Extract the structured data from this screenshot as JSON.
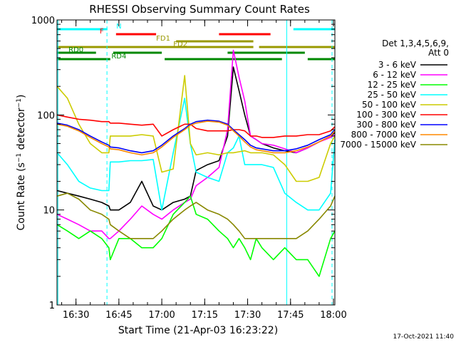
{
  "chart_data": {
    "type": "line",
    "title": "RHESSI Observing Summary Count Rates",
    "xlabel": "Start Time (21-Apr-03 16:23:22)",
    "ylabel": "Count Rate (s⁻¹ detector⁻¹)",
    "ylabel_parts": {
      "base": "Count Rate (s",
      "sup1": "−1",
      "mid": " detector",
      "sup2": "−1",
      "end": ")"
    },
    "y_scale": "log",
    "ylim": [
      1,
      1000
    ],
    "xlim": [
      "16:23:22",
      "18:00:30"
    ],
    "x_ticks": [
      "16:30",
      "16:45",
      "17:00",
      "17:15",
      "17:30",
      "17:45",
      "18:00"
    ],
    "y_ticks": [
      "1",
      "10",
      "100",
      "1000"
    ],
    "legend_position": "right",
    "legend_header": [
      "Det 1,3,4,5,6,9,",
      "Att 0"
    ],
    "timestamp": "17-Oct-2021 11:40",
    "flag_labels": [
      "N",
      "F",
      "FD1",
      "FD2",
      "RD0",
      "RD4"
    ],
    "flags": [
      {
        "label": "N",
        "color": "#00ffff",
        "segments": [
          [
            "16:23:22",
            "16:41:00"
          ],
          [
            "17:46:00",
            "18:00:30"
          ]
        ]
      },
      {
        "label": "F",
        "color": "#ff0000",
        "segments": [
          [
            "16:44:00",
            "16:58:00"
          ],
          [
            "17:20:00",
            "17:38:00"
          ]
        ]
      },
      {
        "label": "FD1",
        "color": "#999900",
        "segments": [
          [
            "17:05:00",
            "17:32:00"
          ]
        ]
      },
      {
        "label": "FD2",
        "color": "#999900",
        "segments": [
          [
            "16:23:22",
            "17:32:00"
          ],
          [
            "17:34:00",
            "18:00:30"
          ]
        ]
      },
      {
        "label": "RD0",
        "color": "#008800",
        "segments": [
          [
            "16:23:22",
            "16:37:00"
          ],
          [
            "16:43:00",
            "17:00:00"
          ],
          [
            "17:23:00",
            "17:50:00"
          ]
        ]
      },
      {
        "label": "RD4",
        "color": "#008800",
        "segments": [
          [
            "16:23:22",
            "16:42:00"
          ],
          [
            "17:01:00",
            "17:42:00"
          ],
          [
            "17:51:00",
            "18:00:30"
          ]
        ]
      }
    ],
    "x_minutes": [
      23.4,
      27,
      31,
      35,
      39,
      41.5,
      42,
      45,
      49,
      53,
      57,
      60,
      64,
      68,
      70,
      72,
      76,
      80,
      83,
      85,
      87,
      89,
      91,
      93,
      95,
      99,
      103,
      107,
      111,
      115,
      119,
      120.5
    ],
    "series": [
      {
        "name": "3 - 6 keV",
        "color": "#000000",
        "values": [
          16,
          15,
          14,
          13,
          12,
          11,
          10,
          10,
          12,
          20,
          11,
          10,
          12,
          13,
          14,
          26,
          30,
          33,
          60,
          320,
          180,
          100,
          60,
          55,
          50,
          45,
          42,
          40,
          45,
          52,
          60,
          65
        ]
      },
      {
        "name": "6 - 12 keV",
        "color": "#ff00ff",
        "values": [
          9,
          8,
          7,
          6,
          6,
          5,
          5,
          6,
          8,
          11,
          9,
          8,
          10,
          12,
          13,
          18,
          22,
          28,
          70,
          480,
          250,
          140,
          60,
          55,
          50,
          48,
          44,
          40,
          45,
          52,
          58,
          62
        ]
      },
      {
        "name": "12 - 25 keV",
        "color": "#00ff00",
        "values": [
          7,
          6,
          5,
          6,
          5,
          4,
          3,
          5,
          5,
          4,
          4,
          5,
          9,
          12,
          14,
          9,
          8,
          6,
          5,
          4,
          5,
          4,
          3,
          5,
          4,
          3,
          4,
          3,
          3,
          2,
          5,
          6
        ]
      },
      {
        "name": "25 - 50 keV",
        "color": "#00ffff",
        "values": [
          40,
          30,
          20,
          17,
          16,
          16,
          32,
          32,
          33,
          33,
          34,
          10,
          40,
          150,
          50,
          25,
          22,
          20,
          40,
          45,
          60,
          30,
          30,
          30,
          30,
          28,
          15,
          12,
          10,
          10,
          15,
          55
        ]
      },
      {
        "name": "50 - 100 keV",
        "color": "#cccc00",
        "values": [
          200,
          150,
          80,
          50,
          40,
          40,
          60,
          60,
          60,
          62,
          60,
          25,
          27,
          260,
          50,
          38,
          40,
          38,
          40,
          40,
          41,
          42,
          40,
          40,
          40,
          38,
          30,
          20,
          20,
          22,
          50,
          60
        ]
      },
      {
        "name": "100 - 300 keV",
        "color": "#ff0000",
        "values": [
          100,
          95,
          90,
          88,
          85,
          85,
          82,
          82,
          80,
          78,
          80,
          60,
          70,
          80,
          80,
          72,
          68,
          68,
          68,
          70,
          70,
          68,
          60,
          60,
          58,
          58,
          60,
          60,
          62,
          62,
          68,
          75
        ]
      },
      {
        "name": "300 - 800 keV",
        "color": "#0000ff",
        "values": [
          82,
          78,
          70,
          60,
          52,
          48,
          46,
          45,
          42,
          40,
          42,
          48,
          60,
          72,
          80,
          85,
          88,
          86,
          80,
          70,
          62,
          55,
          48,
          45,
          44,
          42,
          42,
          44,
          48,
          55,
          62,
          70
        ]
      },
      {
        "name": "800 - 7000 keV",
        "color": "#ff8800",
        "values": [
          80,
          76,
          68,
          58,
          50,
          46,
          44,
          43,
          40,
          38,
          40,
          46,
          58,
          70,
          78,
          82,
          86,
          84,
          78,
          68,
          60,
          52,
          46,
          43,
          42,
          40,
          40,
          42,
          46,
          52,
          60,
          68
        ]
      },
      {
        "name": "7000 - 15000 keV",
        "color": "#888800",
        "values": [
          14,
          15,
          13,
          10,
          9,
          8,
          7,
          6,
          5,
          5,
          5,
          6,
          8,
          10,
          11,
          12,
          10,
          9,
          8,
          7,
          6,
          5,
          5,
          5,
          5,
          5,
          5,
          5,
          6,
          8,
          11,
          14
        ]
      }
    ]
  }
}
